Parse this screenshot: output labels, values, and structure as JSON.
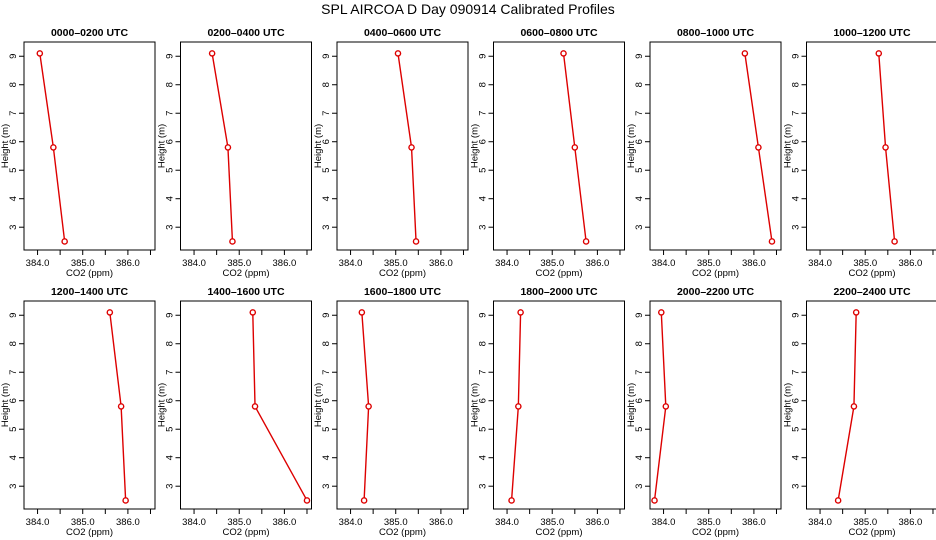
{
  "title": "SPL AIRCOA D  Day 090914  Calibrated Profiles",
  "colors": {
    "series": "#dd0000",
    "axis": "#000000",
    "background": "#ffffff"
  },
  "chart_data": [
    {
      "type": "line",
      "title": "0000–0200 UTC",
      "xlabel": "CO2 (ppm)",
      "ylabel": "Height (m)",
      "xlim": [
        383.7,
        386.6
      ],
      "ylim": [
        2.2,
        9.5
      ],
      "x_ticks": [
        "384.0",
        "385.0",
        "386.0"
      ],
      "y_ticks": [
        "3",
        "4",
        "5",
        "6",
        "7",
        "8",
        "9"
      ],
      "points": [
        {
          "x": 384.05,
          "y": 9.1
        },
        {
          "x": 384.35,
          "y": 5.8
        },
        {
          "x": 384.6,
          "y": 2.5
        }
      ]
    },
    {
      "type": "line",
      "title": "0200–0400 UTC",
      "xlabel": "CO2 (ppm)",
      "ylabel": "Height (m)",
      "xlim": [
        383.7,
        386.6
      ],
      "ylim": [
        2.2,
        9.5
      ],
      "x_ticks": [
        "384.0",
        "385.0",
        "386.0"
      ],
      "y_ticks": [
        "3",
        "4",
        "5",
        "6",
        "7",
        "8",
        "9"
      ],
      "points": [
        {
          "x": 384.4,
          "y": 9.1
        },
        {
          "x": 384.75,
          "y": 5.8
        },
        {
          "x": 384.85,
          "y": 2.5
        }
      ]
    },
    {
      "type": "line",
      "title": "0400–0600 UTC",
      "xlabel": "CO2 (ppm)",
      "ylabel": "Height (m)",
      "xlim": [
        383.7,
        386.6
      ],
      "ylim": [
        2.2,
        9.5
      ],
      "x_ticks": [
        "384.0",
        "385.0",
        "386.0"
      ],
      "y_ticks": [
        "3",
        "4",
        "5",
        "6",
        "7",
        "8",
        "9"
      ],
      "points": [
        {
          "x": 385.05,
          "y": 9.1
        },
        {
          "x": 385.35,
          "y": 5.8
        },
        {
          "x": 385.45,
          "y": 2.5
        }
      ]
    },
    {
      "type": "line",
      "title": "0600–0800 UTC",
      "xlabel": "CO2 (ppm)",
      "ylabel": "Height (m)",
      "xlim": [
        383.7,
        386.6
      ],
      "ylim": [
        2.2,
        9.5
      ],
      "x_ticks": [
        "384.0",
        "385.0",
        "386.0"
      ],
      "y_ticks": [
        "3",
        "4",
        "5",
        "6",
        "7",
        "8",
        "9"
      ],
      "points": [
        {
          "x": 385.25,
          "y": 9.1
        },
        {
          "x": 385.5,
          "y": 5.8
        },
        {
          "x": 385.75,
          "y": 2.5
        }
      ]
    },
    {
      "type": "line",
      "title": "0800–1000 UTC",
      "xlabel": "CO2 (ppm)",
      "ylabel": "Height (m)",
      "xlim": [
        383.7,
        386.6
      ],
      "ylim": [
        2.2,
        9.5
      ],
      "x_ticks": [
        "384.0",
        "385.0",
        "386.0"
      ],
      "y_ticks": [
        "3",
        "4",
        "5",
        "6",
        "7",
        "8",
        "9"
      ],
      "points": [
        {
          "x": 385.8,
          "y": 9.1
        },
        {
          "x": 386.1,
          "y": 5.8
        },
        {
          "x": 386.4,
          "y": 2.5
        }
      ]
    },
    {
      "type": "line",
      "title": "1000–1200 UTC",
      "xlabel": "CO2 (ppm)",
      "ylabel": "Height (m)",
      "xlim": [
        383.7,
        386.6
      ],
      "ylim": [
        2.2,
        9.5
      ],
      "x_ticks": [
        "384.0",
        "385.0",
        "386.0"
      ],
      "y_ticks": [
        "3",
        "4",
        "5",
        "6",
        "7",
        "8",
        "9"
      ],
      "points": [
        {
          "x": 385.3,
          "y": 9.1
        },
        {
          "x": 385.45,
          "y": 5.8
        },
        {
          "x": 385.65,
          "y": 2.5
        }
      ]
    },
    {
      "type": "line",
      "title": "1200–1400 UTC",
      "xlabel": "CO2 (ppm)",
      "ylabel": "Height (m)",
      "xlim": [
        383.7,
        386.6
      ],
      "ylim": [
        2.2,
        9.5
      ],
      "x_ticks": [
        "384.0",
        "385.0",
        "386.0"
      ],
      "y_ticks": [
        "3",
        "4",
        "5",
        "6",
        "7",
        "8",
        "9"
      ],
      "points": [
        {
          "x": 385.6,
          "y": 9.1
        },
        {
          "x": 385.85,
          "y": 5.8
        },
        {
          "x": 385.95,
          "y": 2.5
        }
      ]
    },
    {
      "type": "line",
      "title": "1400–1600 UTC",
      "xlabel": "CO2 (ppm)",
      "ylabel": "Height (m)",
      "xlim": [
        383.7,
        386.6
      ],
      "ylim": [
        2.2,
        9.5
      ],
      "x_ticks": [
        "384.0",
        "385.0",
        "386.0"
      ],
      "y_ticks": [
        "3",
        "4",
        "5",
        "6",
        "7",
        "8",
        "9"
      ],
      "points": [
        {
          "x": 385.3,
          "y": 9.1
        },
        {
          "x": 385.35,
          "y": 5.8
        },
        {
          "x": 386.5,
          "y": 2.5
        }
      ]
    },
    {
      "type": "line",
      "title": "1600–1800 UTC",
      "xlabel": "CO2 (ppm)",
      "ylabel": "Height (m)",
      "xlim": [
        383.7,
        386.6
      ],
      "ylim": [
        2.2,
        9.5
      ],
      "x_ticks": [
        "384.0",
        "385.0",
        "386.0"
      ],
      "y_ticks": [
        "3",
        "4",
        "5",
        "6",
        "7",
        "8",
        "9"
      ],
      "points": [
        {
          "x": 384.25,
          "y": 9.1
        },
        {
          "x": 384.4,
          "y": 5.8
        },
        {
          "x": 384.3,
          "y": 2.5
        }
      ]
    },
    {
      "type": "line",
      "title": "1800–2000 UTC",
      "xlabel": "CO2 (ppm)",
      "ylabel": "Height (m)",
      "xlim": [
        383.7,
        386.6
      ],
      "ylim": [
        2.2,
        9.5
      ],
      "x_ticks": [
        "384.0",
        "385.0",
        "386.0"
      ],
      "y_ticks": [
        "3",
        "4",
        "5",
        "6",
        "7",
        "8",
        "9"
      ],
      "points": [
        {
          "x": 384.3,
          "y": 9.1
        },
        {
          "x": 384.25,
          "y": 5.8
        },
        {
          "x": 384.1,
          "y": 2.5
        }
      ]
    },
    {
      "type": "line",
      "title": "2000–2200 UTC",
      "xlabel": "CO2 (ppm)",
      "ylabel": "Height (m)",
      "xlim": [
        383.7,
        386.6
      ],
      "ylim": [
        2.2,
        9.5
      ],
      "x_ticks": [
        "384.0",
        "385.0",
        "386.0"
      ],
      "y_ticks": [
        "3",
        "4",
        "5",
        "6",
        "7",
        "8",
        "9"
      ],
      "points": [
        {
          "x": 383.95,
          "y": 9.1
        },
        {
          "x": 384.05,
          "y": 5.8
        },
        {
          "x": 383.8,
          "y": 2.5
        }
      ]
    },
    {
      "type": "line",
      "title": "2200–2400 UTC",
      "xlabel": "CO2 (ppm)",
      "ylabel": "Height (m)",
      "xlim": [
        383.7,
        386.6
      ],
      "ylim": [
        2.2,
        9.5
      ],
      "x_ticks": [
        "384.0",
        "385.0",
        "386.0"
      ],
      "y_ticks": [
        "3",
        "4",
        "5",
        "6",
        "7",
        "8",
        "9"
      ],
      "points": [
        {
          "x": 384.8,
          "y": 9.1
        },
        {
          "x": 384.75,
          "y": 5.8
        },
        {
          "x": 384.4,
          "y": 2.5
        }
      ]
    }
  ]
}
